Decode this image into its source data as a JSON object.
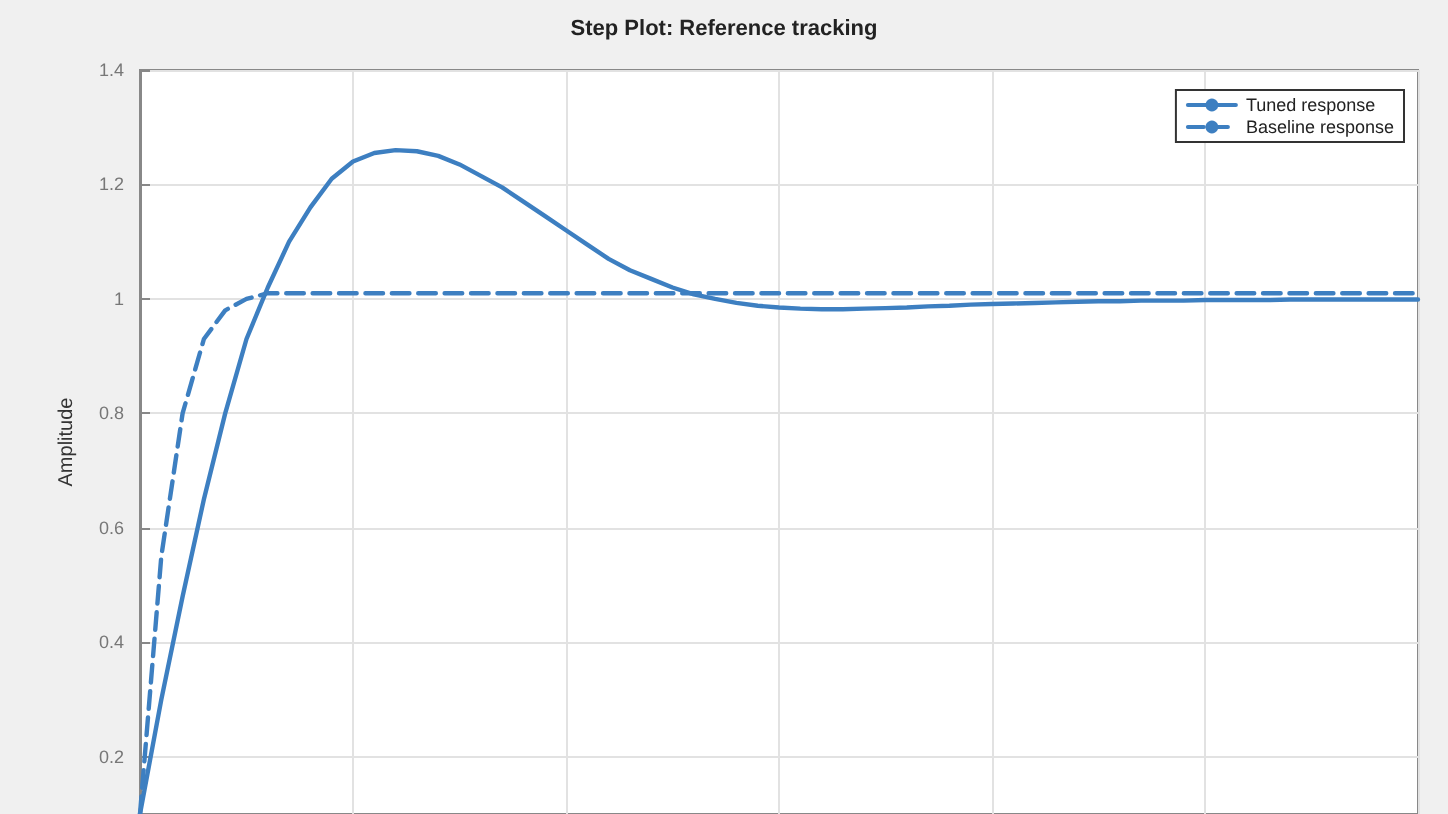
{
  "chart_data": {
    "type": "line",
    "title": "Step Plot: Reference tracking",
    "ylabel": "Amplitude",
    "categories": [
      null,
      null,
      null,
      null,
      null,
      null,
      null,
      null,
      null,
      null,
      null,
      null,
      null,
      null,
      null,
      null,
      null,
      null,
      null,
      null,
      null,
      null,
      null,
      null,
      null,
      null,
      null,
      null,
      null,
      null,
      null,
      null,
      null,
      null,
      null,
      null,
      null,
      null,
      null,
      null,
      null,
      null,
      null,
      null,
      null,
      null,
      null,
      null,
      null,
      null,
      null,
      null,
      null,
      null,
      null,
      null,
      null,
      null,
      null,
      null,
      null
    ],
    "series": [
      {
        "name": "Tuned response",
        "color": "#3d7fc1",
        "line_style": "solid",
        "values": [
          0.1,
          0.3,
          0.48,
          0.65,
          0.8,
          0.93,
          1.02,
          1.1,
          1.16,
          1.21,
          1.24,
          1.255,
          1.26,
          1.258,
          1.25,
          1.235,
          1.215,
          1.195,
          1.17,
          1.145,
          1.12,
          1.095,
          1.07,
          1.05,
          1.035,
          1.02,
          1.008,
          1.0,
          0.993,
          0.988,
          0.985,
          0.983,
          0.982,
          0.982,
          0.983,
          0.984,
          0.985,
          0.987,
          0.988,
          0.99,
          0.991,
          0.992,
          0.993,
          0.994,
          0.995,
          0.996,
          0.996,
          0.997,
          0.997,
          0.997,
          0.998,
          0.998,
          0.998,
          0.998,
          0.999,
          0.999,
          0.999,
          0.999,
          0.999,
          0.999,
          0.999
        ]
      },
      {
        "name": "Baseline response",
        "color": "#3d7fc1",
        "line_style": "dashed",
        "values": [
          0.1,
          0.55,
          0.8,
          0.93,
          0.98,
          1.0,
          1.01,
          1.01,
          1.01,
          1.01,
          1.01,
          1.01,
          1.01,
          1.01,
          1.01,
          1.01,
          1.01,
          1.01,
          1.01,
          1.01,
          1.01,
          1.01,
          1.01,
          1.01,
          1.01,
          1.01,
          1.01,
          1.01,
          1.01,
          1.01,
          1.01,
          1.01,
          1.01,
          1.01,
          1.01,
          1.01,
          1.01,
          1.01,
          1.01,
          1.01,
          1.01,
          1.01,
          1.01,
          1.01,
          1.01,
          1.01,
          1.01,
          1.01,
          1.01,
          1.01,
          1.01,
          1.01,
          1.01,
          1.01,
          1.01,
          1.01,
          1.01,
          1.01,
          1.01,
          1.01,
          1.01
        ]
      }
    ],
    "ylim": [
      0.1,
      1.4
    ],
    "yticks": [
      0.2,
      0.4,
      0.6,
      0.8,
      1,
      1.2,
      1.4
    ],
    "grid": true,
    "legend": "top right",
    "marker": "none",
    "tick_labels": "y"
  }
}
